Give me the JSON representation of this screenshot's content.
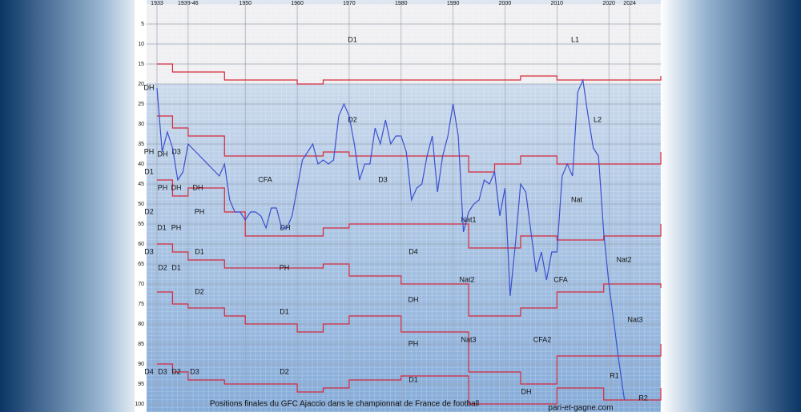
{
  "chart_data": {
    "type": "line",
    "title": "Positions finales du GFC Ajaccio dans le championnat de France de football",
    "watermark": "pari-et-gagne.com",
    "xlim": [
      1931,
      2030
    ],
    "ylim": [
      0,
      100
    ],
    "y_reversed": true,
    "grid": true,
    "xticks": [
      1933,
      {
        "value": 1939,
        "label": "1939-46"
      },
      1950,
      1960,
      1970,
      1980,
      1990,
      2000,
      2010,
      2020,
      2024
    ],
    "yticks": [
      5,
      10,
      15,
      20,
      25,
      30,
      35,
      40,
      45,
      50,
      55,
      60,
      65,
      70,
      75,
      80,
      85,
      90,
      95,
      100
    ],
    "series": [
      {
        "color": "#3b4fd0",
        "x": [
          1933,
          1934,
          1935,
          1936,
          1937,
          1938,
          1939,
          1945,
          1946,
          1947,
          1948,
          1949,
          1950,
          1951,
          1952,
          1953,
          1954,
          1955,
          1956,
          1957,
          1958,
          1959,
          1960,
          1961,
          1962,
          1963,
          1964,
          1965,
          1966,
          1967,
          1968,
          1969,
          1970,
          1971,
          1972,
          1973,
          1974,
          1975,
          1976,
          1977,
          1978,
          1979,
          1980,
          1981,
          1982,
          1983,
          1984,
          1985,
          1986,
          1987,
          1988,
          1989,
          1990,
          1991,
          1992,
          1993,
          1994,
          1995,
          1996,
          1997,
          1998,
          1999,
          2000,
          2001,
          2002,
          2003,
          2004,
          2005,
          2006,
          2007,
          2008,
          2009,
          2010,
          2011,
          2012,
          2013,
          2014,
          2015,
          2016,
          2017,
          2018,
          2019,
          2020,
          2021,
          2022,
          2023
        ],
        "values": [
          21,
          37,
          32,
          36,
          44,
          42,
          35,
          43,
          40,
          49,
          52,
          52,
          54,
          52,
          52,
          53,
          56,
          51,
          51,
          56,
          56,
          53,
          46,
          39,
          37,
          35,
          40,
          39,
          40,
          39,
          28,
          25,
          28,
          35,
          44,
          40,
          40,
          31,
          35,
          29,
          35,
          33,
          33,
          37,
          49,
          46,
          45,
          38,
          33,
          47,
          38,
          33,
          25,
          33,
          57,
          52,
          50,
          49,
          44,
          45,
          42,
          53,
          46,
          73,
          60,
          45,
          47,
          57,
          67,
          62,
          69,
          62,
          62,
          43,
          40,
          43,
          22,
          19,
          28,
          36,
          38,
          57,
          70,
          80,
          90,
          99
        ]
      }
    ],
    "boundary_color": "#d8283a",
    "boundary_x": [
      1933,
      1936,
      1939,
      1946,
      1950,
      1960,
      1965,
      1970,
      1980,
      1993,
      1998,
      2003,
      2010,
      2019,
      2030
    ],
    "boundaries": [
      [
        15,
        17,
        17,
        19,
        19,
        20,
        19,
        19,
        19,
        19,
        19,
        18,
        19,
        19,
        18
      ],
      [
        28,
        31,
        33,
        38,
        38,
        38,
        37,
        38,
        38,
        42,
        40,
        38,
        40,
        40,
        37
      ],
      [
        44,
        48,
        46,
        52,
        58,
        58,
        56,
        55,
        55,
        61,
        61,
        58,
        59,
        58,
        55
      ],
      [
        60,
        62,
        64,
        66,
        66,
        66,
        65,
        68,
        70,
        78,
        78,
        76,
        72,
        70,
        71
      ],
      [
        72,
        75,
        76,
        78,
        80,
        82,
        80,
        78,
        82,
        92,
        92,
        95,
        88,
        88,
        85
      ],
      [
        90,
        92,
        94,
        95,
        95,
        97,
        96,
        94,
        93,
        100,
        100,
        100,
        96,
        99,
        96
      ]
    ],
    "annotations": [
      "D1",
      "L1",
      "L2",
      "D2",
      "D3",
      "CFA",
      "Nat",
      "Nat1",
      "DH",
      "D4",
      "PH",
      "Nat2",
      "Nat2",
      "CFA",
      "DH",
      "D1",
      "Nat3",
      "Nat3",
      "PH",
      "CFA2",
      "D2",
      "D1",
      "R1",
      "DH",
      "R2",
      "DH",
      "PH",
      "DH",
      "D3",
      "D1",
      "PH",
      "DH",
      "DH",
      "D2",
      "D1",
      "PH",
      "PH",
      "D3",
      "D2",
      "D1",
      "D1",
      "D2",
      "D4",
      "D3",
      "D2",
      "D3"
    ]
  }
}
